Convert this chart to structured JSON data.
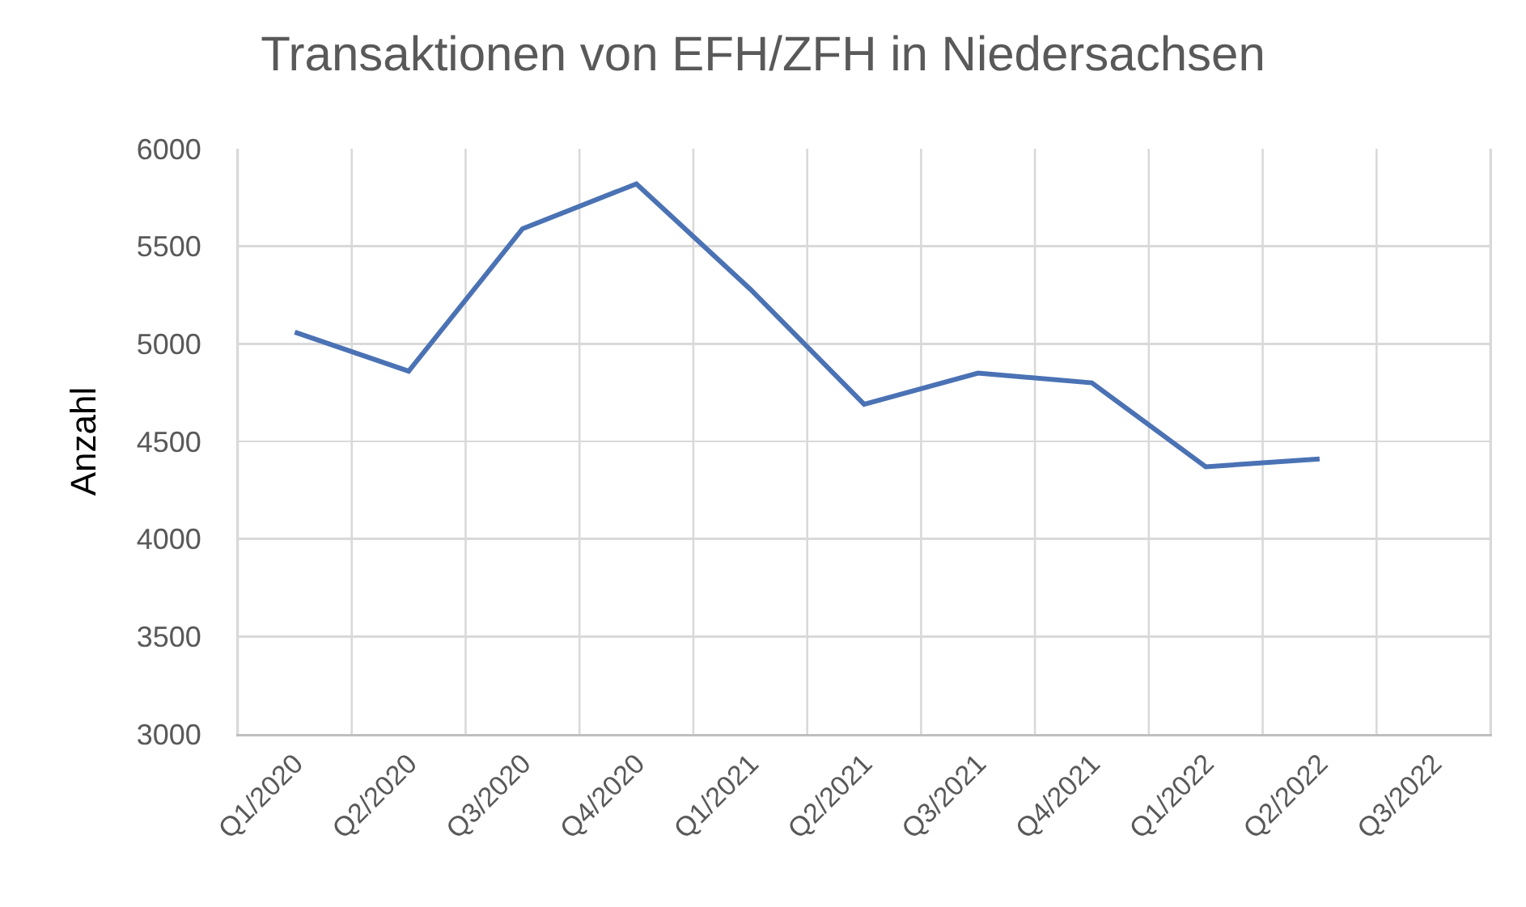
{
  "chart_data": {
    "type": "line",
    "title": "Transaktionen von EFH/ZFH in Niedersachsen",
    "ylabel": "Anzahl",
    "categories": [
      "Q1/2020",
      "Q2/2020",
      "Q3/2020",
      "Q4/2020",
      "Q1/2021",
      "Q2/2021",
      "Q3/2021",
      "Q4/2021",
      "Q1/2022",
      "Q2/2022",
      "Q3/2022"
    ],
    "series": [
      {
        "color": "#4a72b4",
        "values": [
          5060,
          4860,
          5590,
          5820,
          5280,
          4690,
          4850,
          4800,
          4370,
          4410,
          null
        ]
      }
    ],
    "ylim": [
      3000,
      6000
    ],
    "yticks": [
      3000,
      3500,
      4000,
      4500,
      5000,
      5500,
      6000
    ],
    "grid": true,
    "marker": "none",
    "line_style": "solid"
  }
}
